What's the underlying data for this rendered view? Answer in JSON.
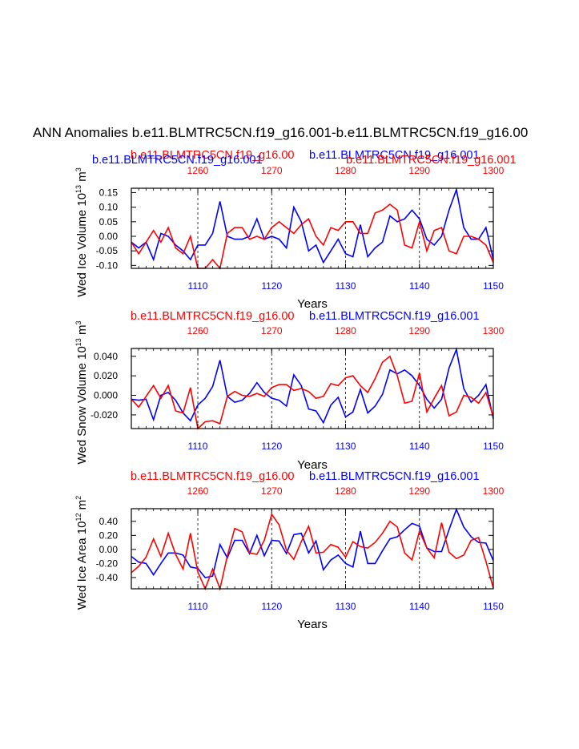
{
  "title": "ANN Anomalies b.e11.BLMTRC5CN.f19_g16.001-b.e11.BLMTRC5CN.f19_g16.00",
  "colors": {
    "case1": "#0000ff",
    "case2": "#ff0000",
    "axis": "#000000"
  },
  "header_labels": {
    "top": {
      "left_blue": "b.e11.BLMTRC5CN.f19_g16.001",
      "mid_red": "b.e11.BLMTRC5CN.f19_g16.00",
      "mid_blue": "b.e11.BLMTRC5CN.f19_g16.001",
      "right_red": "b.e11.BLMTRC5CN.f19_g16.001"
    },
    "middle": {
      "red": "b.e11.BLMTRC5CN.f19_g16.00",
      "blue": "b.e11.BLMTRC5CN.f19_g16.001"
    },
    "bottom": {
      "red": "b.e11.BLMTRC5CN.f19_g16.00",
      "blue": "b.e11.BLMTRC5CN.f19_g16.001"
    }
  },
  "chart_data": [
    {
      "type": "line",
      "ylabel": "Wed Ice Volume 10",
      "ylabel_sup1": "13",
      "ylabel_unit": " m",
      "ylabel_sup2": "3",
      "xlabel": "Years",
      "xlim": [
        1101,
        1150
      ],
      "top_xlim": [
        1251,
        1300
      ],
      "ylim": [
        -0.11,
        0.165
      ],
      "xticks": [
        1110,
        1120,
        1130,
        1140,
        1150
      ],
      "top_xticks": [
        1260,
        1270,
        1280,
        1290,
        1300
      ],
      "yticks": [
        -0.1,
        -0.05,
        0.0,
        0.05,
        0.1,
        0.15
      ],
      "ytick_labels": [
        "-0.10",
        "-0.05",
        "0.00",
        "0.05",
        "0.10",
        "0.15"
      ],
      "series": [
        {
          "name": "b.e11.BLMTRC5CN.f19_g16.001",
          "color": "#0000ff",
          "values": [
            -0.02,
            -0.04,
            -0.02,
            -0.08,
            0.01,
            0.0,
            -0.03,
            -0.05,
            -0.08,
            -0.03,
            -0.03,
            0.01,
            0.12,
            0.0,
            -0.01,
            -0.01,
            0.0,
            0.06,
            -0.01,
            0.0,
            -0.01,
            -0.04,
            0.1,
            0.05,
            -0.05,
            -0.03,
            -0.09,
            -0.05,
            -0.01,
            -0.06,
            -0.07,
            0.04,
            -0.07,
            -0.04,
            -0.02,
            0.07,
            0.05,
            0.06,
            0.09,
            0.06,
            -0.01,
            -0.03,
            0.0,
            0.09,
            0.16,
            0.03,
            -0.01,
            -0.01,
            0.03,
            -0.08
          ]
        },
        {
          "name": "b.e11.BLMTRC5CN.f19_g16.00",
          "color": "#ff0000",
          "values": [
            -0.02,
            -0.06,
            -0.02,
            0.02,
            -0.02,
            0.03,
            -0.04,
            -0.06,
            0.0,
            -0.11,
            -0.11,
            -0.08,
            -0.11,
            0.01,
            0.03,
            0.03,
            -0.01,
            0.0,
            -0.01,
            0.03,
            0.05,
            0.03,
            0.01,
            0.04,
            0.06,
            0.0,
            -0.03,
            0.03,
            0.02,
            0.05,
            0.05,
            0.01,
            0.01,
            0.08,
            0.09,
            0.11,
            0.09,
            -0.03,
            -0.04,
            0.05,
            -0.05,
            0.02,
            0.03,
            -0.05,
            -0.06,
            0.0,
            0.0,
            -0.01,
            -0.03,
            -0.09
          ]
        }
      ]
    },
    {
      "type": "line",
      "ylabel": "Wed Snow Volume 10",
      "ylabel_sup1": "13",
      "ylabel_unit": " m",
      "ylabel_sup2": "3",
      "xlabel": "Years",
      "xlim": [
        1101,
        1150
      ],
      "top_xlim": [
        1251,
        1300
      ],
      "ylim": [
        -0.034,
        0.048
      ],
      "xticks": [
        1110,
        1120,
        1130,
        1140,
        1150
      ],
      "top_xticks": [
        1260,
        1270,
        1280,
        1290,
        1300
      ],
      "yticks": [
        -0.02,
        0.0,
        0.02,
        0.04
      ],
      "ytick_labels": [
        "-0.020",
        "0.000",
        "0.020",
        "0.040"
      ],
      "series": [
        {
          "name": "b.e11.BLMTRC5CN.f19_g16.001",
          "color": "#0000ff",
          "values": [
            -0.004,
            -0.005,
            -0.004,
            -0.025,
            0.0,
            0.003,
            -0.005,
            -0.018,
            -0.026,
            -0.01,
            -0.003,
            0.009,
            0.036,
            -0.001,
            -0.007,
            -0.005,
            0.002,
            0.013,
            0.003,
            -0.003,
            -0.005,
            -0.011,
            0.021,
            0.01,
            -0.014,
            -0.016,
            -0.028,
            -0.01,
            -0.002,
            -0.022,
            -0.017,
            0.006,
            -0.018,
            -0.011,
            0.001,
            0.026,
            0.022,
            0.026,
            0.02,
            0.01,
            -0.004,
            -0.013,
            -0.004,
            0.028,
            0.047,
            0.007,
            -0.007,
            0.0,
            0.011,
            -0.024
          ]
        },
        {
          "name": "b.e11.BLMTRC5CN.f19_g16.00",
          "color": "#ff0000",
          "values": [
            -0.004,
            -0.012,
            -0.001,
            0.01,
            -0.003,
            0.01,
            -0.016,
            -0.018,
            0.008,
            -0.034,
            -0.027,
            -0.026,
            -0.029,
            -0.001,
            0.004,
            0.0,
            -0.001,
            0.002,
            -0.001,
            0.008,
            0.011,
            0.011,
            0.005,
            0.007,
            0.004,
            -0.003,
            -0.001,
            0.012,
            0.01,
            0.018,
            0.02,
            0.01,
            0.003,
            0.017,
            0.034,
            0.04,
            0.02,
            -0.008,
            -0.006,
            0.023,
            -0.017,
            -0.003,
            0.01,
            -0.021,
            -0.017,
            0.0,
            -0.002,
            -0.008,
            0.003,
            -0.022
          ]
        }
      ]
    },
    {
      "type": "line",
      "ylabel": "Wed Ice Area 10",
      "ylabel_sup1": "12",
      "ylabel_unit": " m",
      "ylabel_sup2": "2",
      "xlabel": "Years",
      "xlim": [
        1101,
        1150
      ],
      "top_xlim": [
        1251,
        1300
      ],
      "ylim": [
        -0.56,
        0.58
      ],
      "xticks": [
        1110,
        1120,
        1130,
        1140,
        1150
      ],
      "top_xticks": [
        1260,
        1270,
        1280,
        1290,
        1300
      ],
      "yticks": [
        -0.4,
        -0.2,
        0.0,
        0.2,
        0.4
      ],
      "ytick_labels": [
        "-0.40",
        "-0.20",
        "0.00",
        "0.20",
        "0.40"
      ],
      "series": [
        {
          "name": "b.e11.BLMTRC5CN.f19_g16.001",
          "color": "#0000ff",
          "values": [
            -0.1,
            -0.18,
            -0.2,
            -0.36,
            -0.2,
            -0.05,
            -0.05,
            -0.08,
            -0.25,
            -0.27,
            -0.4,
            -0.38,
            0.07,
            -0.12,
            0.13,
            0.13,
            -0.06,
            0.2,
            -0.09,
            0.13,
            0.12,
            -0.06,
            0.21,
            0.23,
            -0.05,
            0.12,
            -0.29,
            -0.15,
            -0.08,
            -0.2,
            -0.25,
            0.26,
            -0.2,
            -0.2,
            -0.02,
            0.15,
            0.18,
            0.28,
            0.37,
            0.33,
            0.02,
            -0.03,
            -0.03,
            0.28,
            0.57,
            0.32,
            0.18,
            0.1,
            0.09,
            -0.16
          ]
        },
        {
          "name": "b.e11.BLMTRC5CN.f19_g16.00",
          "color": "#ff0000",
          "values": [
            -0.33,
            -0.24,
            -0.11,
            0.15,
            -0.1,
            0.23,
            -0.07,
            -0.28,
            0.23,
            -0.32,
            -0.56,
            -0.28,
            -0.56,
            -0.09,
            0.3,
            0.25,
            -0.05,
            -0.07,
            0.13,
            0.5,
            0.35,
            -0.01,
            -0.14,
            0.11,
            0.33,
            -0.05,
            -0.04,
            0.07,
            0.03,
            -0.11,
            0.11,
            0.04,
            0.02,
            0.1,
            0.23,
            0.4,
            0.32,
            -0.05,
            -0.15,
            0.26,
            0.02,
            -0.12,
            0.38,
            -0.04,
            -0.13,
            -0.08,
            0.13,
            0.17,
            -0.17,
            -0.55
          ]
        }
      ]
    }
  ]
}
